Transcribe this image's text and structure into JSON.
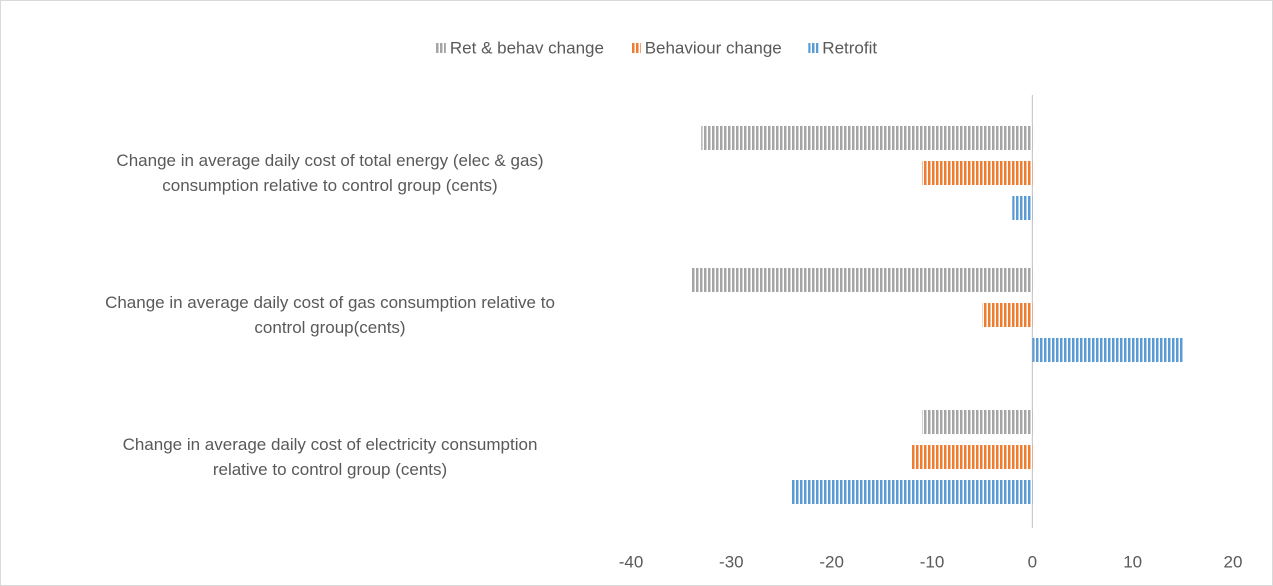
{
  "chart_data": {
    "type": "barh",
    "categories": [
      "Change in average daily cost  of total energy (elec & gas)\nconsumption relative to control group (cents)",
      "Change in average daily cost  of gas consumption relative to\ncontrol group(cents)",
      "Change in average daily cost  of electricity consumption\nrelative to control group (cents)"
    ],
    "series": [
      {
        "name": "Ret & behav change",
        "color": "#a5a5a5",
        "values": [
          -33,
          -34,
          -11
        ]
      },
      {
        "name": "Behaviour change",
        "color": "#ed7d31",
        "values": [
          -11,
          -5,
          -12
        ]
      },
      {
        "name": "Retrofit",
        "color": "#5b9bd5",
        "values": [
          -2,
          15,
          -24
        ]
      }
    ],
    "xlim": [
      -40,
      20
    ],
    "xticks": [
      -40,
      -30,
      -20,
      -10,
      0,
      10,
      20
    ],
    "legend": "top"
  }
}
